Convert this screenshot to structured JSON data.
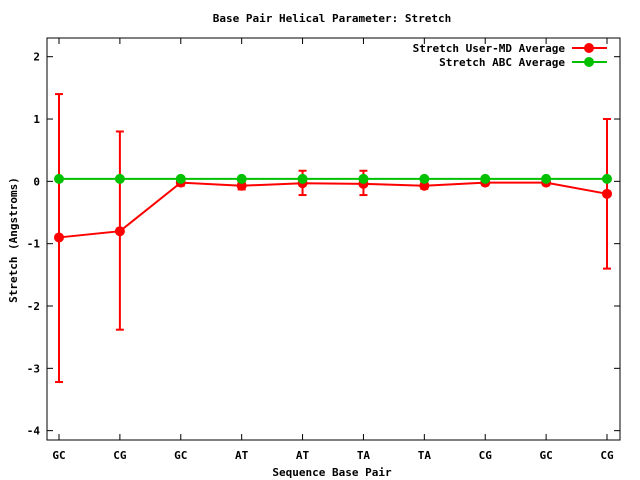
{
  "chart_data": {
    "type": "line",
    "title": "Base Pair Helical Parameter: Stretch",
    "xlabel": "Sequence Base Pair",
    "ylabel": "Stretch (Angstroms)",
    "categories": [
      "GC",
      "CG",
      "GC",
      "AT",
      "AT",
      "TA",
      "TA",
      "CG",
      "GC",
      "CG"
    ],
    "ylim": [
      -4.15,
      2.3
    ],
    "yticks": [
      -4,
      -3,
      -2,
      -1,
      0,
      1,
      2
    ],
    "ytick_labels": [
      "-4",
      "-3",
      "-2",
      "-1",
      "0",
      "1",
      "2"
    ],
    "legend_position": "top-right",
    "grid": false,
    "series": [
      {
        "name": "Stretch User-MD Average",
        "color": "#ff0000",
        "values": [
          -0.9,
          -0.8,
          -0.02,
          -0.07,
          -0.03,
          -0.04,
          -0.07,
          -0.02,
          -0.02,
          -0.2
        ],
        "error_low": [
          -3.22,
          -2.38,
          -0.07,
          -0.13,
          -0.22,
          -0.22,
          -0.12,
          -0.06,
          -0.06,
          -1.4
        ],
        "error_high": [
          1.4,
          0.8,
          0.03,
          -0.02,
          0.17,
          0.17,
          -0.03,
          0.02,
          0.02,
          1.0
        ]
      },
      {
        "name": "Stretch ABC Average",
        "color": "#00c000",
        "values": [
          0.04,
          0.04,
          0.04,
          0.04,
          0.04,
          0.04,
          0.04,
          0.04,
          0.04,
          0.04
        ]
      }
    ]
  }
}
